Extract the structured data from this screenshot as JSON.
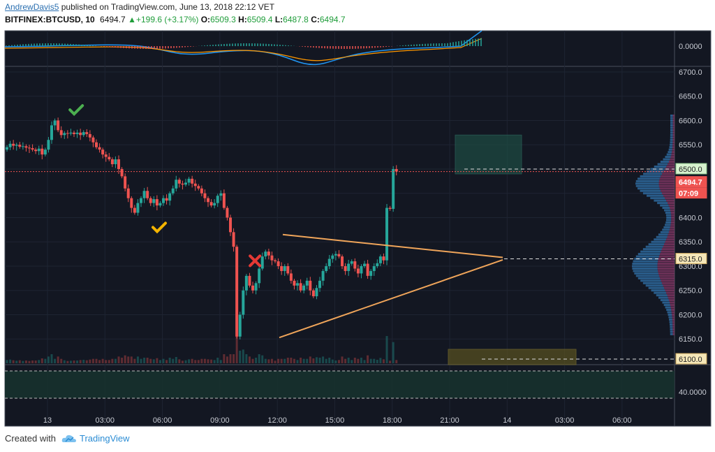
{
  "header": {
    "author": "AndrewDavis5",
    "published_text": "published on TradingView.com, June 13, 2018 22:12 VET",
    "symbol": "BITFINEX:BTCUSD, 10",
    "last": "6494.7",
    "change": "+199.6 (+3.17%)",
    "open_label": "O:",
    "open": "6509.3",
    "high_label": "H:",
    "high": "6509.4",
    "low_label": "L:",
    "low": "6487.8",
    "close_label": "C:",
    "close": "6494.7"
  },
  "footer": {
    "created_with": "Created with",
    "brand": "TradingView"
  },
  "chart_data": {
    "type": "candlestick",
    "symbol": "BITFINEX:BTCUSD",
    "interval": "10",
    "price_axis": {
      "ticks": [
        "6700.0",
        "6650.0",
        "6600.0",
        "6550.0",
        "6500.0",
        "6450.0",
        "6400.0",
        "6350.0",
        "6300.0",
        "6250.0",
        "6200.0",
        "6150.0"
      ],
      "range": [
        6100,
        6710
      ]
    },
    "time_axis": {
      "ticks": [
        "13",
        "03:00",
        "06:00",
        "09:00",
        "12:00",
        "15:00",
        "18:00",
        "21:00",
        "14",
        "03:00",
        "06:00"
      ]
    },
    "price_labels": [
      {
        "value": "6500.0",
        "kind": "level"
      },
      {
        "value": "6494.7",
        "kind": "last"
      },
      {
        "value": "07:09",
        "kind": "countdown"
      },
      {
        "value": "6315.0",
        "kind": "level"
      },
      {
        "value": "6100.0",
        "kind": "level"
      }
    ],
    "indicator_top": {
      "axis_label": "0.0000"
    },
    "indicator_bottom": {
      "axis_label": "40.0000"
    },
    "closes": [
      6545,
      6552,
      6548,
      6550,
      6546,
      6547,
      6544,
      6543,
      6540,
      6537,
      6542,
      6530,
      6540,
      6560,
      6590,
      6600,
      6580,
      6570,
      6574,
      6573,
      6575,
      6572,
      6575,
      6570,
      6576,
      6572,
      6565,
      6555,
      6545,
      6540,
      6530,
      6525,
      6520,
      6510,
      6520,
      6500,
      6485,
      6460,
      6440,
      6420,
      6410,
      6430,
      6440,
      6455,
      6440,
      6430,
      6438,
      6425,
      6430,
      6440,
      6435,
      6450,
      6460,
      6478,
      6470,
      6468,
      6472,
      6480,
      6470,
      6465,
      6460,
      6450,
      6440,
      6432,
      6425,
      6430,
      6445,
      6450,
      6420,
      6400,
      6370,
      6340,
      6155,
      6200,
      6250,
      6280,
      6260,
      6250,
      6265,
      6295,
      6320,
      6330,
      6322,
      6312,
      6310,
      6300,
      6290,
      6300,
      6285,
      6270,
      6260,
      6265,
      6250,
      6260,
      6270,
      6250,
      6238,
      6255,
      6270,
      6290,
      6300,
      6315,
      6322,
      6325,
      6320,
      6300,
      6290,
      6305,
      6310,
      6295,
      6285,
      6300,
      6305,
      6280,
      6290,
      6300,
      6306,
      6320,
      6312,
      6420,
      6418,
      6500,
      6495
    ],
    "triangle": {
      "upper": [
        {
          "time": "12:10",
          "price": 6365
        },
        {
          "time": "13 23:50",
          "price": 6318
        }
      ],
      "lower": [
        {
          "time": "12:00",
          "price": 6153
        },
        {
          "time": "13 23:50",
          "price": 6313
        }
      ]
    },
    "markers": [
      {
        "type": "check",
        "color": "#4caf50",
        "time": "01:30",
        "price": 6622
      },
      {
        "type": "check",
        "color": "#f4b400",
        "time": "05:50",
        "price": 6380
      },
      {
        "type": "cross",
        "color": "#e53935",
        "time": "10:50",
        "price": 6311
      }
    ],
    "colors": {
      "up": "#26a69a",
      "down": "#ef5350",
      "background": "#131722",
      "triangle": "#f0a55a"
    }
  }
}
